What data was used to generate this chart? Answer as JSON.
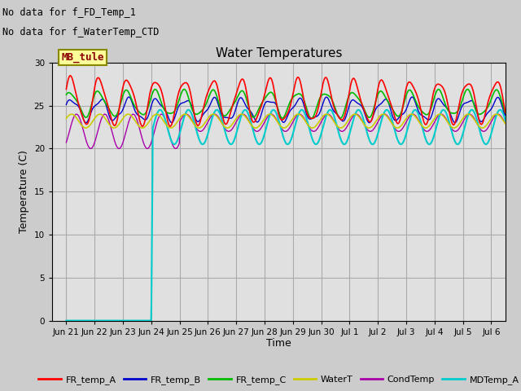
{
  "title": "Water Temperatures",
  "ylabel": "Temperature (C)",
  "xlabel": "Time",
  "ylim": [
    0,
    30
  ],
  "annotations": [
    "No data for f_FD_Temp_1",
    "No data for f_WaterTemp_CTD"
  ],
  "mb_tule_label": "MB_tule",
  "legend_entries": [
    "FR_temp_A",
    "FR_temp_B",
    "FR_temp_C",
    "WaterT",
    "CondTemp",
    "MDTemp_A"
  ],
  "legend_colors": [
    "#ff0000",
    "#0000cc",
    "#00bb00",
    "#cccc00",
    "#aa00aa",
    "#00cccc"
  ],
  "bg_color": "#cccccc",
  "plot_bg_color": "#e0e0e0",
  "grid_color": "#bbbbbb",
  "x_tick_labels": [
    "Jun 21",
    "Jun 22",
    "Jun 23",
    "Jun 24",
    "Jun 25",
    "Jun 26",
    "Jun 27",
    "Jun 28",
    "Jun 29",
    "Jun 30",
    "Jul 1",
    "Jul 2",
    "Jul 3",
    "Jul 4",
    "Jul 5",
    "Jul 6"
  ],
  "figsize": [
    6.4,
    4.8
  ],
  "dpi": 100
}
